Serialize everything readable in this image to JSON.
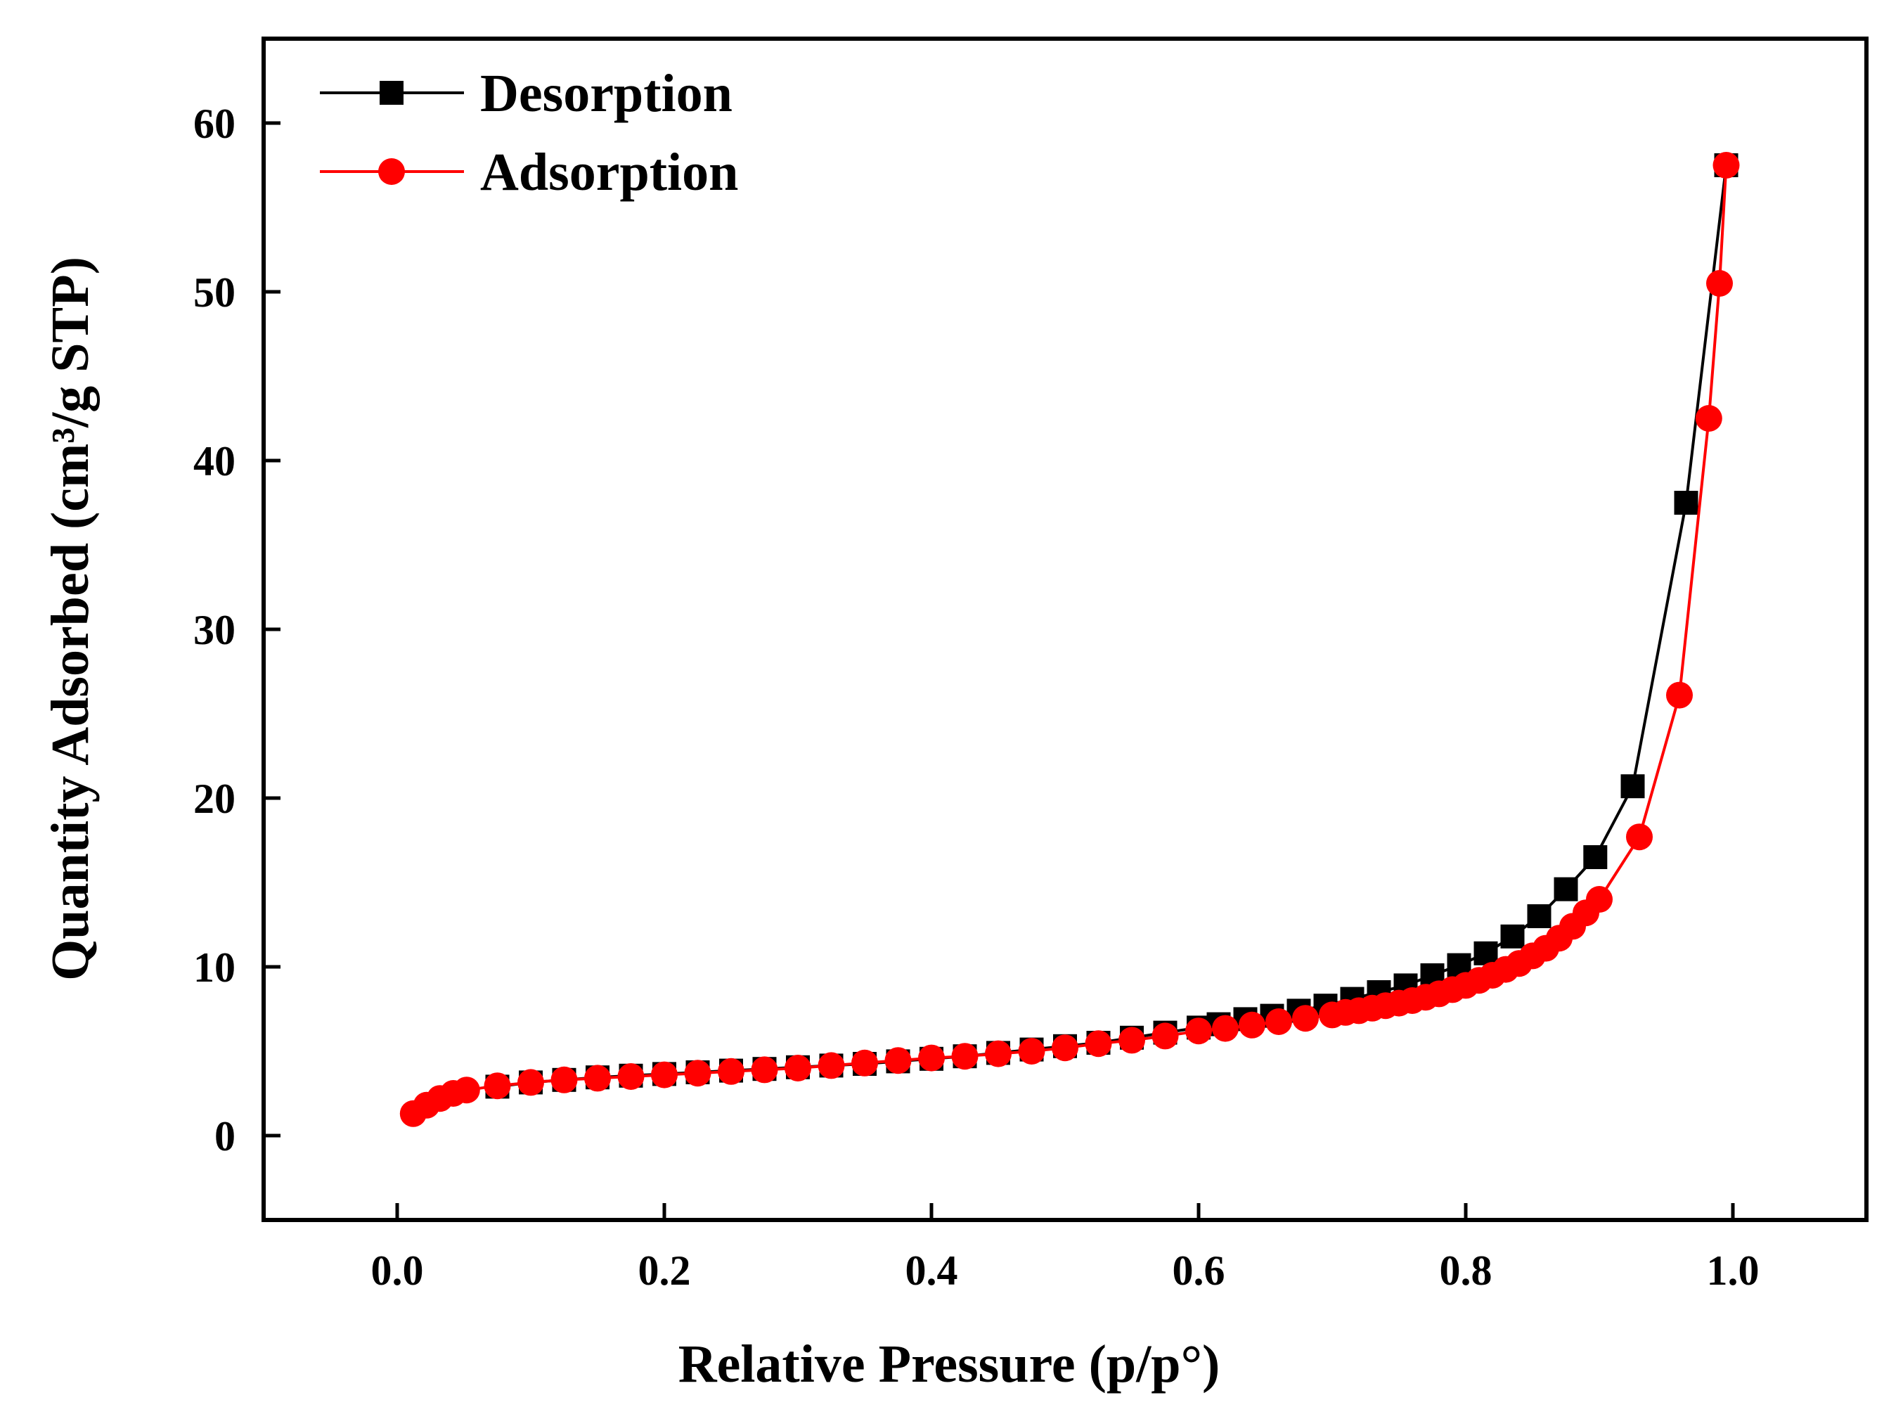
{
  "chart_data": {
    "type": "line",
    "title": "",
    "xlabel": "Relative Pressure (p/p°)",
    "ylabel": "Quantity Adsorbed (cm³/g STP)",
    "xlim": [
      -0.1,
      1.1
    ],
    "ylim": [
      -5,
      65
    ],
    "xticks": [
      0.0,
      0.2,
      0.4,
      0.6,
      0.8,
      1.0
    ],
    "xtick_labels": [
      "0.0",
      "0.2",
      "0.4",
      "0.6",
      "0.8",
      "1.0"
    ],
    "yticks": [
      0,
      10,
      20,
      30,
      40,
      50,
      60
    ],
    "ytick_labels": [
      "0",
      "10",
      "20",
      "30",
      "40",
      "50",
      "60"
    ],
    "grid": false,
    "legend_position": "top-left",
    "series": [
      {
        "name": "Desorption",
        "color": "#000000",
        "marker": "square",
        "x": [
          0.995,
          0.965,
          0.925,
          0.897,
          0.875,
          0.855,
          0.835,
          0.815,
          0.795,
          0.775,
          0.755,
          0.735,
          0.715,
          0.695,
          0.675,
          0.655,
          0.635,
          0.615,
          0.6,
          0.575,
          0.55,
          0.525,
          0.5,
          0.475,
          0.45,
          0.425,
          0.4,
          0.375,
          0.35,
          0.325,
          0.3,
          0.275,
          0.25,
          0.225,
          0.2,
          0.175,
          0.15,
          0.125,
          0.1,
          0.075
        ],
        "y": [
          57.5,
          37.5,
          20.7,
          16.5,
          14.6,
          13.0,
          11.8,
          10.8,
          10.1,
          9.5,
          8.9,
          8.5,
          8.1,
          7.7,
          7.4,
          7.1,
          6.9,
          6.6,
          6.4,
          6.1,
          5.8,
          5.5,
          5.3,
          5.1,
          4.9,
          4.7,
          4.55,
          4.4,
          4.25,
          4.15,
          4.05,
          3.95,
          3.85,
          3.75,
          3.65,
          3.55,
          3.45,
          3.3,
          3.15,
          2.9
        ]
      },
      {
        "name": "Adsorption",
        "color": "#ff0000",
        "marker": "circle",
        "x": [
          0.012,
          0.022,
          0.032,
          0.042,
          0.052,
          0.075,
          0.1,
          0.125,
          0.15,
          0.175,
          0.2,
          0.225,
          0.25,
          0.275,
          0.3,
          0.325,
          0.35,
          0.375,
          0.4,
          0.425,
          0.45,
          0.475,
          0.5,
          0.525,
          0.55,
          0.575,
          0.6,
          0.62,
          0.64,
          0.66,
          0.68,
          0.7,
          0.71,
          0.72,
          0.73,
          0.74,
          0.75,
          0.76,
          0.77,
          0.78,
          0.79,
          0.8,
          0.81,
          0.82,
          0.83,
          0.84,
          0.85,
          0.86,
          0.87,
          0.88,
          0.89,
          0.9,
          0.93,
          0.96,
          0.982,
          0.99,
          0.995
        ],
        "y": [
          1.3,
          1.8,
          2.2,
          2.5,
          2.7,
          2.95,
          3.15,
          3.3,
          3.4,
          3.5,
          3.6,
          3.7,
          3.8,
          3.9,
          4.0,
          4.15,
          4.3,
          4.45,
          4.6,
          4.7,
          4.85,
          5.0,
          5.2,
          5.45,
          5.65,
          5.9,
          6.2,
          6.35,
          6.55,
          6.75,
          6.95,
          7.15,
          7.3,
          7.4,
          7.55,
          7.7,
          7.85,
          8.0,
          8.2,
          8.4,
          8.65,
          8.9,
          9.2,
          9.5,
          9.85,
          10.2,
          10.65,
          11.1,
          11.7,
          12.4,
          13.2,
          14.0,
          17.7,
          26.1,
          42.5,
          50.5,
          57.5
        ]
      }
    ]
  }
}
